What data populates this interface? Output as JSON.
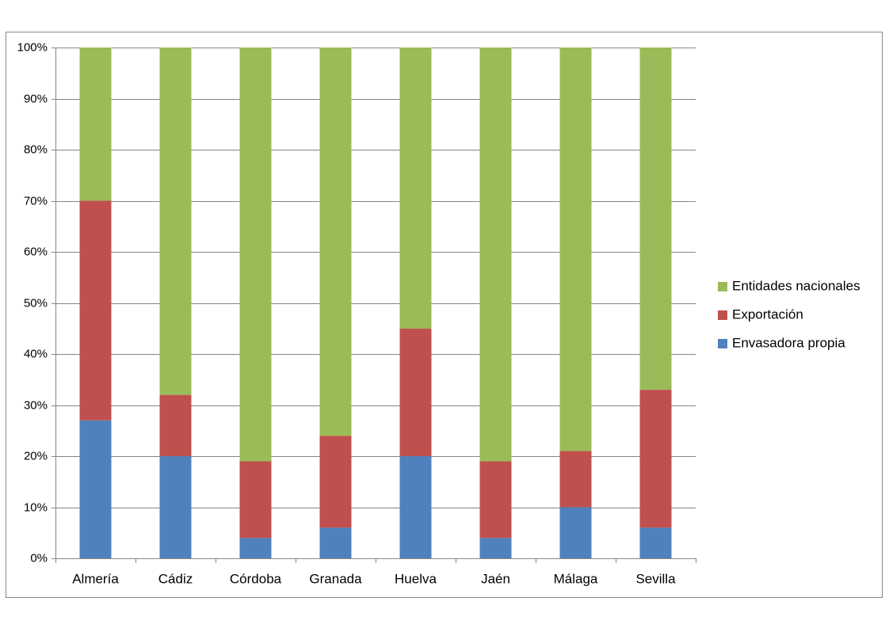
{
  "chart_data": {
    "type": "stacked_bar",
    "categories": [
      "Almería",
      "Cádiz",
      "Córdoba",
      "Granada",
      "Huelva",
      "Jaén",
      "Málaga",
      "Sevilla"
    ],
    "series": [
      {
        "name": "Envasadora propia",
        "color": "#4f81bd",
        "values": [
          27,
          20,
          4,
          6,
          20,
          4,
          10,
          6
        ]
      },
      {
        "name": "Exportación",
        "color": "#c0504d",
        "values": [
          43,
          12,
          15,
          18,
          25,
          15,
          11,
          27
        ]
      },
      {
        "name": "Entidades nacionales",
        "color": "#9bbb59",
        "values": [
          30,
          68,
          81,
          76,
          55,
          81,
          79,
          67
        ]
      }
    ],
    "ylim": [
      0,
      100
    ],
    "yticks": [
      {
        "value": 0,
        "label": "0%"
      },
      {
        "value": 10,
        "label": "10%"
      },
      {
        "value": 20,
        "label": "20%"
      },
      {
        "value": 30,
        "label": "30%"
      },
      {
        "value": 40,
        "label": "40%"
      },
      {
        "value": 50,
        "label": "50%"
      },
      {
        "value": 60,
        "label": "60%"
      },
      {
        "value": 70,
        "label": "70%"
      },
      {
        "value": 80,
        "label": "80%"
      },
      {
        "value": 90,
        "label": "90%"
      },
      {
        "value": 100,
        "label": "100%"
      }
    ],
    "grid": true,
    "legend": "right"
  }
}
